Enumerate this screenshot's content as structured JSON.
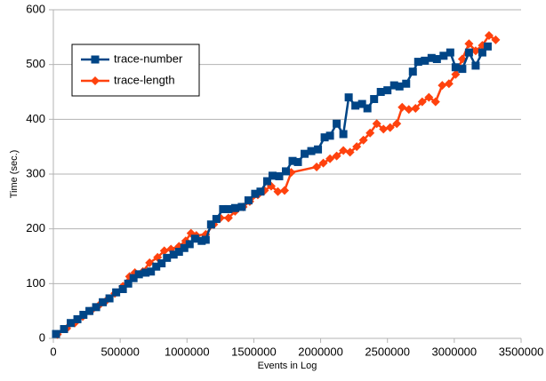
{
  "chart_data": {
    "type": "line",
    "x_label": "Events in Log",
    "y_label": "Time (sec.)",
    "xlim": [
      0,
      3500000
    ],
    "xticks": [
      0,
      500000,
      1000000,
      1500000,
      2000000,
      2500000,
      3000000,
      3500000
    ],
    "ylim": [
      0,
      600
    ],
    "yticks": [
      0,
      100,
      200,
      300,
      400,
      500,
      600
    ],
    "grid": true,
    "legend": "upper left",
    "series": [
      {
        "name": "trace-number",
        "color": "#004586",
        "marker": "square",
        "x": [
          20000,
          80000,
          130000,
          180000,
          225000,
          270000,
          320000,
          370000,
          420000,
          470000,
          520000,
          560000,
          600000,
          640000,
          690000,
          730000,
          770000,
          810000,
          850000,
          900000,
          940000,
          980000,
          1020000,
          1060000,
          1110000,
          1140000,
          1180000,
          1220000,
          1270000,
          1310000,
          1360000,
          1410000,
          1460000,
          1510000,
          1550000,
          1600000,
          1640000,
          1690000,
          1740000,
          1790000,
          1830000,
          1880000,
          1930000,
          1980000,
          2030000,
          2070000,
          2120000,
          2170000,
          2210000,
          2260000,
          2310000,
          2350000,
          2400000,
          2450000,
          2500000,
          2550000,
          2590000,
          2640000,
          2690000,
          2730000,
          2780000,
          2830000,
          2870000,
          2920000,
          2970000,
          3010000,
          3060000,
          3110000,
          3160000,
          3210000,
          3250000
        ],
        "values": [
          8,
          17,
          28,
          35,
          43,
          50,
          57,
          66,
          73,
          84,
          90,
          100,
          110,
          117,
          120,
          122,
          131,
          137,
          147,
          153,
          158,
          165,
          172,
          182,
          178,
          180,
          208,
          218,
          236,
          236,
          238,
          240,
          252,
          264,
          268,
          287,
          297,
          296,
          305,
          324,
          322,
          337,
          342,
          345,
          367,
          370,
          392,
          373,
          440,
          425,
          428,
          420,
          437,
          450,
          453,
          462,
          460,
          465,
          487,
          505,
          507,
          512,
          510,
          516,
          522,
          495,
          492,
          522,
          498,
          522,
          533
        ]
      },
      {
        "name": "trace-length",
        "color": "#ff420e",
        "marker": "diamond",
        "x": [
          30000,
          100000,
          160000,
          220000,
          280000,
          340000,
          400000,
          460000,
          520000,
          570000,
          610000,
          670000,
          720000,
          780000,
          830000,
          880000,
          940000,
          990000,
          1030000,
          1070000,
          1140000,
          1200000,
          1250000,
          1310000,
          1360000,
          1420000,
          1470000,
          1530000,
          1580000,
          1630000,
          1680000,
          1730000,
          1780000,
          1970000,
          2020000,
          2070000,
          2120000,
          2170000,
          2220000,
          2270000,
          2320000,
          2370000,
          2420000,
          2470000,
          2520000,
          2570000,
          2610000,
          2660000,
          2710000,
          2760000,
          2810000,
          2860000,
          2910000,
          2960000,
          3010000,
          3060000,
          3110000,
          3160000,
          3210000,
          3260000,
          3310000
        ],
        "values": [
          7,
          18,
          28,
          40,
          50,
          60,
          70,
          82,
          95,
          113,
          120,
          122,
          138,
          148,
          160,
          163,
          168,
          178,
          192,
          188,
          190,
          208,
          220,
          220,
          232,
          240,
          250,
          262,
          270,
          278,
          268,
          270,
          303,
          313,
          320,
          328,
          333,
          343,
          340,
          350,
          362,
          375,
          392,
          382,
          385,
          392,
          422,
          418,
          420,
          432,
          440,
          432,
          462,
          465,
          482,
          510,
          538,
          525,
          535,
          553,
          545
        ]
      }
    ]
  }
}
